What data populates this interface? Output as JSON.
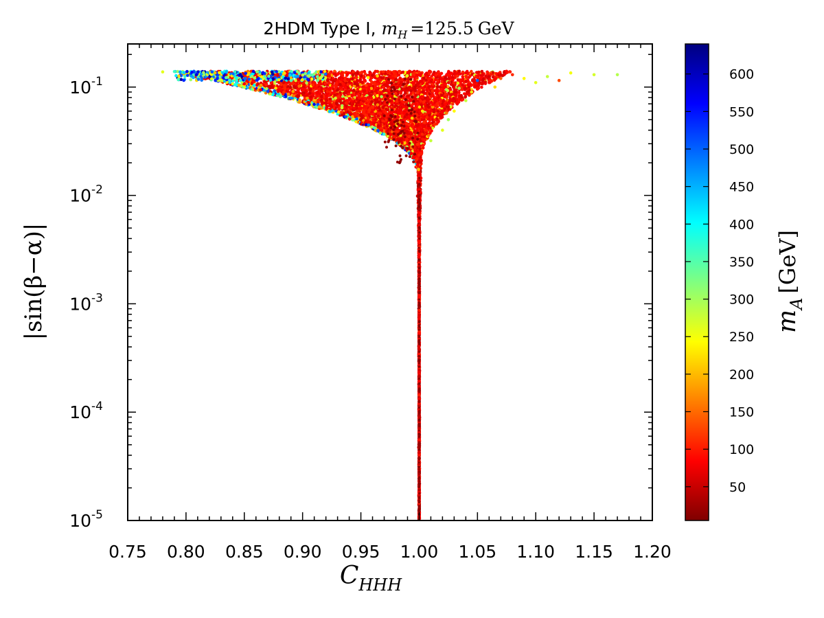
{
  "chart_data": {
    "type": "scatter",
    "title": {
      "prefix": "2HDM Type I, ",
      "symbol": "m",
      "symbol_sub": "H",
      "value": "=125.5",
      "unit": "GeV"
    },
    "xlabel": {
      "symbol": "C",
      "sub": "HHH"
    },
    "ylabel": "|sin(β−α)|",
    "x_scale": "linear",
    "y_scale": "log",
    "xlim": [
      0.75,
      1.2
    ],
    "ylim": [
      1e-05,
      0.25
    ],
    "x_ticks": [
      "0.75",
      "0.80",
      "0.85",
      "0.90",
      "0.95",
      "1.00",
      "1.05",
      "1.10",
      "1.15",
      "1.20"
    ],
    "y_ticks": [
      {
        "base": "10",
        "exp": "-5",
        "value": 1e-05
      },
      {
        "base": "10",
        "exp": "-4",
        "value": 0.0001
      },
      {
        "base": "10",
        "exp": "-3",
        "value": 0.001
      },
      {
        "base": "10",
        "exp": "-2",
        "value": 0.01
      },
      {
        "base": "10",
        "exp": "-1",
        "value": 0.1
      }
    ],
    "colorbar": {
      "symbol": "m",
      "sub": "A",
      "unit": "[GeV]",
      "range": [
        5,
        640
      ],
      "ticks": [
        "50",
        "100",
        "150",
        "200",
        "250",
        "300",
        "350",
        "400",
        "450",
        "500",
        "550",
        "600"
      ],
      "colormap": "jet_reversed",
      "colors": [
        "#7f0000",
        "#ff0000",
        "#ff8000",
        "#ffff00",
        "#80ff80",
        "#00ffff",
        "#0080ff",
        "#0000ff",
        "#00007f"
      ]
    },
    "features": {
      "stem": {
        "x": 1.0,
        "y_range": [
          1e-05,
          0.02
        ],
        "description_color": "#ff5500"
      },
      "fan": {
        "y_range": [
          0.02,
          0.14
        ],
        "x_range_at_top": [
          0.78,
          1.17
        ]
      },
      "top_cutoff": 0.14
    },
    "series": [
      {
        "points_description": "scan points",
        "sample_points": [
          {
            "x": 1.0,
            "y": 1e-05,
            "mA": 40
          },
          {
            "x": 1.0,
            "y": 0.001,
            "mA": 60
          },
          {
            "x": 1.0,
            "y": 0.02,
            "mA": 70
          },
          {
            "x": 0.98,
            "y": 0.08,
            "mA": 20
          },
          {
            "x": 0.95,
            "y": 0.13,
            "mA": 90
          },
          {
            "x": 0.9,
            "y": 0.12,
            "mA": 200
          },
          {
            "x": 0.85,
            "y": 0.125,
            "mA": 350
          },
          {
            "x": 0.8,
            "y": 0.135,
            "mA": 500
          },
          {
            "x": 1.05,
            "y": 0.12,
            "mA": 120
          },
          {
            "x": 1.1,
            "y": 0.11,
            "mA": 250
          },
          {
            "x": 1.17,
            "y": 0.13,
            "mA": 300
          }
        ]
      }
    ]
  }
}
